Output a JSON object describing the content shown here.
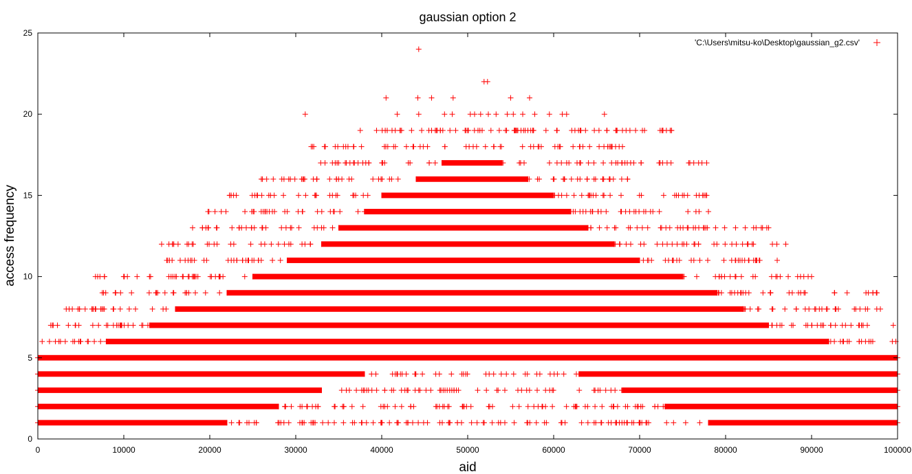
{
  "chart_data": {
    "type": "scatter",
    "title": "gaussian option 2",
    "xlabel": "aid",
    "ylabel": "access frequency",
    "xlim": [
      0,
      100000
    ],
    "ylim": [
      0,
      25
    ],
    "x_ticks": [
      "0",
      "10000",
      "20000",
      "30000",
      "40000",
      "50000",
      "60000",
      "70000",
      "80000",
      "90000",
      "100000"
    ],
    "y_ticks": [
      "0",
      "5",
      "10",
      "15",
      "20",
      "25"
    ],
    "grid": false,
    "legend_position": "top-right",
    "marker": "+",
    "color": "#ff0000",
    "series": [
      {
        "name": "'C:\\Users\\mitsu-ko\\Desktop\\gaussian_g2.csv'",
        "bands": [
          {
            "y": 1,
            "x_min": 0,
            "x_max": 100000,
            "dense": [
              [
                0,
                22000
              ],
              [
                78000,
                100000
              ]
            ]
          },
          {
            "y": 2,
            "x_min": 0,
            "x_max": 100000,
            "dense": [
              [
                0,
                28000
              ],
              [
                73000,
                100000
              ]
            ]
          },
          {
            "y": 3,
            "x_min": 0,
            "x_max": 100000,
            "dense": [
              [
                0,
                33000
              ],
              [
                68000,
                100000
              ]
            ]
          },
          {
            "y": 4,
            "x_min": 0,
            "x_max": 100000,
            "dense": [
              [
                0,
                38000
              ],
              [
                63000,
                100000
              ]
            ]
          },
          {
            "y": 5,
            "x_min": 0,
            "x_max": 100000,
            "dense": [
              [
                0,
                100000
              ]
            ]
          },
          {
            "y": 6,
            "x_min": 500,
            "x_max": 99800,
            "dense": [
              [
                8000,
                92000
              ]
            ]
          },
          {
            "y": 7,
            "x_min": 1500,
            "x_max": 99500,
            "dense": [
              [
                13000,
                85000
              ]
            ]
          },
          {
            "y": 8,
            "x_min": 3300,
            "x_max": 98000,
            "dense": [
              [
                16000,
                82000
              ]
            ]
          },
          {
            "y": 9,
            "x_min": 7500,
            "x_max": 97600,
            "dense": [
              [
                22000,
                79000
              ]
            ]
          },
          {
            "y": 10,
            "x_min": 6700,
            "x_max": 90000,
            "dense": [
              [
                25000,
                75000
              ]
            ]
          },
          {
            "y": 11,
            "x_min": 15000,
            "x_max": 86000,
            "dense": [
              [
                29000,
                70000
              ]
            ]
          },
          {
            "y": 12,
            "x_min": 14400,
            "x_max": 87000,
            "dense": [
              [
                33000,
                67000
              ]
            ]
          },
          {
            "y": 13,
            "x_min": 18000,
            "x_max": 85000,
            "dense": [
              [
                35000,
                64000
              ]
            ]
          },
          {
            "y": 14,
            "x_min": 19800,
            "x_max": 78000,
            "dense": [
              [
                38000,
                62000
              ]
            ]
          },
          {
            "y": 15,
            "x_min": 22300,
            "x_max": 77800,
            "dense": [
              [
                40000,
                60000
              ]
            ]
          },
          {
            "y": 16,
            "x_min": 26000,
            "x_max": 68600,
            "dense": [
              [
                44000,
                57000
              ]
            ]
          },
          {
            "y": 17,
            "x_min": 32900,
            "x_max": 77800,
            "dense": [
              [
                47000,
                54000
              ]
            ]
          },
          {
            "y": 18,
            "x_min": 31800,
            "x_max": 68000,
            "dense": []
          },
          {
            "y": 19,
            "x_min": 37500,
            "x_max": 73700,
            "dense": []
          }
        ],
        "points": [
          {
            "x": 44300,
            "y": 24
          },
          {
            "x": 51900,
            "y": 22
          },
          {
            "x": 52300,
            "y": 22
          },
          {
            "x": 40500,
            "y": 21
          },
          {
            "x": 44200,
            "y": 21
          },
          {
            "x": 45800,
            "y": 21
          },
          {
            "x": 48300,
            "y": 21
          },
          {
            "x": 55000,
            "y": 21
          },
          {
            "x": 57200,
            "y": 21
          },
          {
            "x": 31100,
            "y": 20
          },
          {
            "x": 41800,
            "y": 20
          },
          {
            "x": 44300,
            "y": 20
          },
          {
            "x": 47300,
            "y": 20
          },
          {
            "x": 48200,
            "y": 20
          },
          {
            "x": 50300,
            "y": 20
          },
          {
            "x": 50800,
            "y": 20
          },
          {
            "x": 51500,
            "y": 20
          },
          {
            "x": 52400,
            "y": 20
          },
          {
            "x": 53300,
            "y": 20
          },
          {
            "x": 54600,
            "y": 20
          },
          {
            "x": 55300,
            "y": 20
          },
          {
            "x": 56400,
            "y": 20
          },
          {
            "x": 57800,
            "y": 20
          },
          {
            "x": 59500,
            "y": 20
          },
          {
            "x": 61000,
            "y": 20
          },
          {
            "x": 61500,
            "y": 20
          },
          {
            "x": 65900,
            "y": 20
          },
          {
            "x": 39400,
            "y": 19
          },
          {
            "x": 41200,
            "y": 19
          },
          {
            "x": 42300,
            "y": 19
          },
          {
            "x": 45800,
            "y": 19
          },
          {
            "x": 47100,
            "y": 19
          },
          {
            "x": 48600,
            "y": 19
          },
          {
            "x": 49800,
            "y": 19
          },
          {
            "x": 51200,
            "y": 19
          },
          {
            "x": 52700,
            "y": 19
          },
          {
            "x": 54400,
            "y": 19
          },
          {
            "x": 55600,
            "y": 19
          },
          {
            "x": 57000,
            "y": 19
          },
          {
            "x": 59100,
            "y": 19
          },
          {
            "x": 60400,
            "y": 19
          },
          {
            "x": 62100,
            "y": 19
          },
          {
            "x": 63700,
            "y": 19
          },
          {
            "x": 73700,
            "y": 19
          }
        ]
      }
    ]
  }
}
